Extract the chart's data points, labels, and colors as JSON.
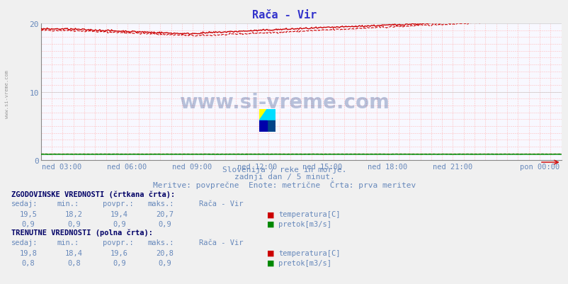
{
  "title": "Rača - Vir",
  "bg_color": "#f0f0f0",
  "plot_bg_color": "#f8f8ff",
  "x_labels": [
    "ned 03:00",
    "ned 06:00",
    "ned 09:00",
    "ned 12:00",
    "ned 15:00",
    "ned 18:00",
    "ned 21:00",
    "pon 00:00"
  ],
  "x_tick_positions": [
    0.0417,
    0.1667,
    0.2917,
    0.4167,
    0.5417,
    0.6667,
    0.7917,
    0.9583
  ],
  "n_points": 576,
  "y_min": 0,
  "y_max": 20,
  "y_ticks": [
    0,
    10,
    20
  ],
  "subtitle1": "Slovenija / reke in morje.",
  "subtitle2": "zadnji dan / 5 minut.",
  "subtitle3": "Meritve: povprečne  Enote: metrične  Črta: prva meritev",
  "watermark": "www.si-vreme.com",
  "text_color": "#6688bb",
  "title_color": "#3333cc",
  "temp_color": "#cc0000",
  "flow_color": "#008800",
  "bold_color": "#000066",
  "grid_minor_color": "#ffcccc",
  "grid_major_color": "#ddaaaa",
  "logo_colors": [
    "#ffff00",
    "#00ddff",
    "#0000aa",
    "#004488"
  ],
  "sidebar_text": "www.si-vreme.com",
  "section1_header": "ZGODOVINSKE VREDNOSTI (črtkana črta):",
  "section2_header": "TRENUTNE VREDNOSTI (polna črta):",
  "col_headers": [
    "sedaj:",
    "min.:",
    "povpr.:",
    "maks.:",
    "Rača - Vir"
  ],
  "hist_temp_vals": [
    "19,5",
    "18,2",
    "19,4",
    "20,7"
  ],
  "hist_flow_vals": [
    "0,9",
    "0,9",
    "0,9",
    "0,9"
  ],
  "curr_temp_vals": [
    "19,8",
    "18,4",
    "19,6",
    "20,8"
  ],
  "curr_flow_vals": [
    "0,8",
    "0,8",
    "0,9",
    "0,9"
  ],
  "label_temp": "temperatura[C]",
  "label_flow": "pretok[m3/s]"
}
